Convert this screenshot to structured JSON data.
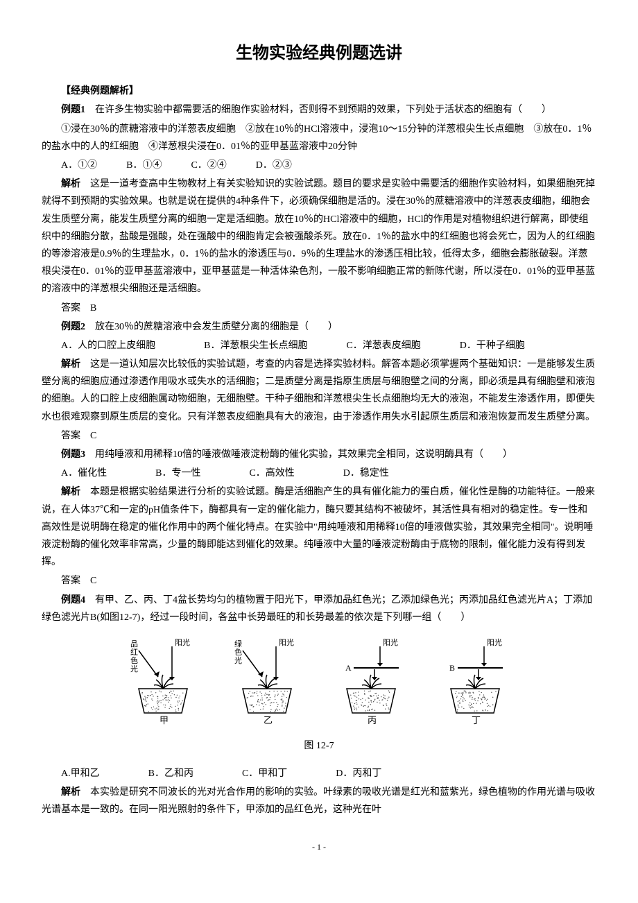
{
  "title": "生物实验经典例题选讲",
  "sectionHeader": "【经典例题解析】",
  "q1": {
    "label": "例题1",
    "text": "　在许多生物实验中都需要活的细胞作实验材料，否则得不到预期的效果，下列处于活状态的细胞有（　　）",
    "items": "①浸在30％的蔗糖溶液中的洋葱表皮细胞　②放在10％的HCl溶液中，浸泡10～15分钟的洋葱根尖生长点细胞　③放在0．1％的盐水中的人的红细胞　④洋葱根尖浸在0．01％的亚甲基蓝溶液中20分钟",
    "options": "A．①②　　　B．①④　　　C．②④　　　D．②③",
    "analysisLabel": "解析",
    "analysis": "　这是一道考查高中生物教材上有关实验知识的实验试题。题目的要求是实验中需要活的细胞作实验材料，如果细胞死掉就得不到预期的实验效果。也就是说在提供的4种条件下，必须确保细胞是活的。浸在30％的蔗糖溶液中的洋葱表皮细胞，细胞会发生质壁分离，能发生质壁分离的细胞一定是活细胞。放在10％的HCl溶液中的细胞，HCl的作用是对植物组织进行解离，即使组织中的细胞分散，盐酸是强酸，处在强酸中的细胞肯定会被强酸杀死。放在0．1％的盐水中的红细胞也将会死亡，因为人的红细胞的等渗溶液是0.9％的生理盐水，0．1％的盐水的渗透压与0．9％的生理盐水的渗透压相比较，低得太多，细胞会膨胀破裂。洋葱根尖浸在0．01％的亚甲基蓝溶液中，亚甲基蓝是一种活体染色剂，一般不影响细胞正常的新陈代谢，所以浸在0．01％的亚甲基蓝的溶液中的洋葱根尖细胞还是活细胞。",
    "answer": "答案　B"
  },
  "q2": {
    "label": "例题2",
    "text": "　放在30％的蔗糖溶液中会发生质壁分离的细胞是（　　）",
    "options": "A．人的口腔上皮细胞　　　　　B．洋葱根尖生长点细胞　　　　C．洋葱表皮细胞　　　　D．干种子细胞",
    "analysisLabel": "解析",
    "analysis": "　这是一道认知层次比较低的实验试题，考查的内容是选择实验材料。解答本题必须掌握两个基础知识：一是能够发生质壁分离的细胞应通过渗透作用吸水或失水的活细胞；二是质壁分离是指原生质层与细胞壁之间的分离，即必须是具有细胞壁和液泡的细胞。人的口腔上皮细胞属动物细胞，无细胞壁。干种子细胞和洋葱根尖生长点细胞均无大的液泡，不能发生渗透作用，即便失水也很难观察到原生质层的变化。只有洋葱表皮细胞具有大的液泡，由于渗透作用失水引起原生质层和液泡恢复而发生质壁分离。",
    "answer": "答案　C"
  },
  "q3": {
    "label": "例题3",
    "text": "　用纯唾液和用稀释10倍的唾液做唾液淀粉酶的催化实验，其效果完全相同，这说明酶具有（　　）",
    "options": "A．催化性　　　　　B．专一性　　　　　C．高效性　　　　　D．稳定性",
    "analysisLabel": "解析",
    "analysis": "　本题是根据实验结果进行分析的实验试题。酶是活细胞产生的具有催化能力的蛋白质，催化性是酶的功能特征。一般来说，在人体37℃和一定的pH值条件下，酶都具有一定的催化能力，酶只要其结构不被破坏，其活性具有相对的稳定性。专一性和高效性是说明酶在稳定的催化作用中的两个催化特点。在实验中\"用纯唾液和用稀释10倍的唾液做实验，其效果完全相同\"。说明唾液淀粉酶的催化效率非常高，少量的酶即能达到催化的效果。纯唾液中大量的唾液淀粉酶由于底物的限制，催化能力没有得到发挥。",
    "answer": "答案　C"
  },
  "q4": {
    "label": "例题4",
    "text": "　有甲、乙、丙、丁4盆长势均匀的植物置于阳光下，甲添加品红色光；乙添加绿色光；丙添加品红色滤光片A；丁添加绿色滤光片B(如图12-7)，经过一段时间，各盆中长势最旺的和长势最差的依次是下列哪一组（　　）",
    "options": "A.甲和乙　　　　　B．乙和丙　　　　　C．甲和丁　　　　　D．丙和丁",
    "analysisLabel": "解析",
    "analysis": "　本实验是研究不同波长的光对光合作用的影响的实验。叶绿素的吸收光谱是红光和蓝紫光，绿色植物的作用光谱与吸收光谱基本是一致的。在同一阳光照射的条件下，甲添加的品红色光，这种光在叶"
  },
  "figure": {
    "caption": "图 12-7",
    "pots": [
      {
        "label": "甲",
        "lightLabel": "品红色光",
        "sunLabel": "阳光",
        "hasFilter": false,
        "lightArrow": "left"
      },
      {
        "label": "乙",
        "lightLabel": "绿色光",
        "sunLabel": "阳光",
        "hasFilter": false,
        "lightArrow": "left"
      },
      {
        "label": "丙",
        "lightLabel": "",
        "sunLabel": "阳光",
        "hasFilter": true,
        "filterLabel": "A",
        "lightArrow": "none"
      },
      {
        "label": "丁",
        "lightLabel": "",
        "sunLabel": "阳光",
        "hasFilter": true,
        "filterLabel": "B",
        "lightArrow": "none"
      }
    ],
    "colors": {
      "potFill": "#d0c8b8",
      "potStroke": "#000000",
      "soilDots": "#505050",
      "plant": "#000000"
    }
  },
  "pageNumber": "- 1 -"
}
